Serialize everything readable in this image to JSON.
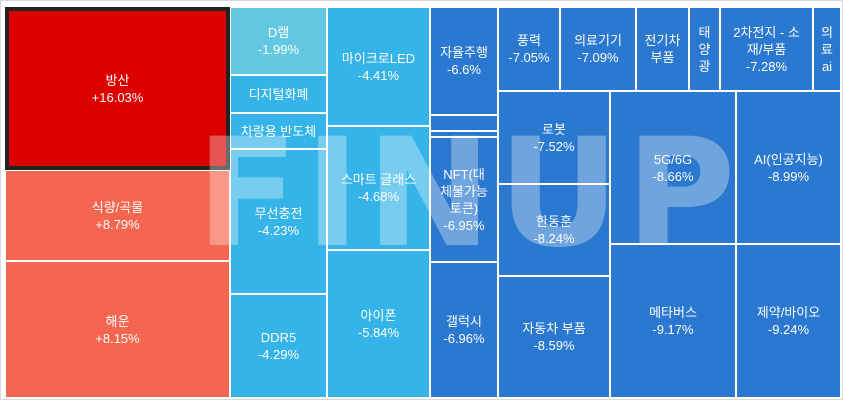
{
  "chart_data": {
    "type": "treemap",
    "title": "",
    "watermark": "FINUP",
    "selected": "방산",
    "colors": {
      "strong_up": "#dd0000",
      "up": "#f4664f",
      "light_down": "#62c8e2",
      "down": "#35b4e9",
      "strong_down": "#2a78d0",
      "border": "#ffffff",
      "selected_border": "#222222"
    },
    "items": [
      {
        "name": "방산",
        "change": "+16.03%",
        "value": 16.03,
        "color": "#dd0000"
      },
      {
        "name": "식량/곡물",
        "change": "+8.79%",
        "value": 8.79,
        "color": "#f4664f"
      },
      {
        "name": "해운",
        "change": "+8.15%",
        "value": 8.15,
        "color": "#f4664f"
      },
      {
        "name": "D램",
        "change": "-1.99%",
        "value": -1.99,
        "color": "#62c8e2"
      },
      {
        "name": "디지털화폐",
        "change": "",
        "value": null,
        "color": "#35b4e9"
      },
      {
        "name": "차량용 반도체",
        "change": "",
        "value": null,
        "color": "#35b4e9"
      },
      {
        "name": "무선충전",
        "change": "-4.23%",
        "value": -4.23,
        "color": "#35b4e9"
      },
      {
        "name": "DDR5",
        "change": "-4.29%",
        "value": -4.29,
        "color": "#35b4e9"
      },
      {
        "name": "마이크로LED",
        "change": "-4.41%",
        "value": -4.41,
        "color": "#35b4e9"
      },
      {
        "name": "스마트 글래스",
        "change": "-4.68%",
        "value": -4.68,
        "color": "#35b4e9"
      },
      {
        "name": "아이폰",
        "change": "-5.84%",
        "value": -5.84,
        "color": "#35b4e9"
      },
      {
        "name": "자율주행",
        "change": "-6.6%",
        "value": -6.6,
        "color": "#2a78d0"
      },
      {
        "name": "",
        "change": "",
        "value": null,
        "color": "#2a78d0"
      },
      {
        "name": "",
        "change": "",
        "value": null,
        "color": "#2a78d0"
      },
      {
        "name": "NFT(대\n체불가능\n토큰)",
        "change": "-6.95%",
        "value": -6.95,
        "color": "#2a78d0"
      },
      {
        "name": "갤럭시",
        "change": "-6.96%",
        "value": -6.96,
        "color": "#2a78d0"
      },
      {
        "name": "풍력",
        "change": "-7.05%",
        "value": -7.05,
        "color": "#2a78d0"
      },
      {
        "name": "의료기기",
        "change": "-7.09%",
        "value": -7.09,
        "color": "#2a78d0"
      },
      {
        "name": "전기차\n부품",
        "change": "",
        "value": null,
        "color": "#2a78d0"
      },
      {
        "name": "태\n양\n광",
        "change": "",
        "value": null,
        "color": "#2a78d0"
      },
      {
        "name": "2차전지 - 소\n재/부품",
        "change": "-7.28%",
        "value": -7.28,
        "color": "#2a78d0"
      },
      {
        "name": "의\n료\nai",
        "change": "",
        "value": null,
        "color": "#2a78d0"
      },
      {
        "name": "로봇",
        "change": "-7.52%",
        "value": -7.52,
        "color": "#2a78d0"
      },
      {
        "name": "한동훈",
        "change": "-8.24%",
        "value": -8.24,
        "color": "#2a78d0"
      },
      {
        "name": "자동차 부품",
        "change": "-8.59%",
        "value": -8.59,
        "color": "#2a78d0"
      },
      {
        "name": "5G/6G",
        "change": "-8.66%",
        "value": -8.66,
        "color": "#2a78d0"
      },
      {
        "name": "AI(인공지능)",
        "change": "-8.99%",
        "value": -8.99,
        "color": "#2a78d0"
      },
      {
        "name": "메타버스",
        "change": "-9.17%",
        "value": -9.17,
        "color": "#2a78d0"
      },
      {
        "name": "제약/바이오",
        "change": "-9.24%",
        "value": -9.24,
        "color": "#2a78d0"
      }
    ]
  }
}
